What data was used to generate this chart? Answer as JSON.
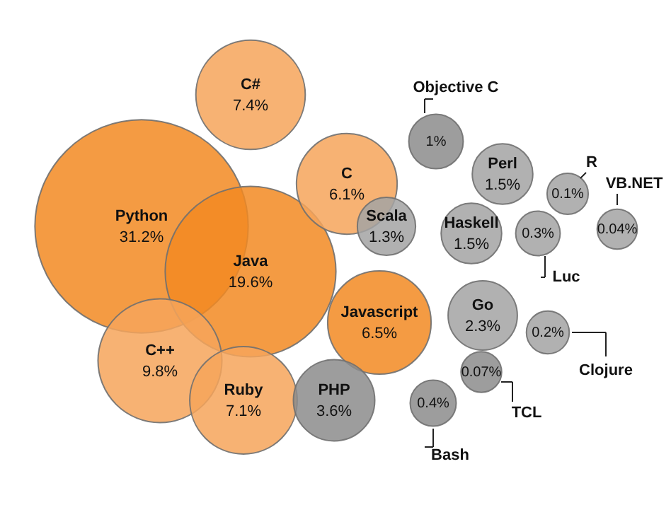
{
  "chart_data": {
    "type": "other",
    "categories": [
      "Python",
      "Java",
      "C++",
      "C#",
      "Ruby",
      "Javascript",
      "C",
      "PHP",
      "Go",
      "Perl",
      "Haskell",
      "Scala",
      "Objective C",
      "Bash",
      "TCL",
      "R",
      "VB.NET",
      "Luc",
      "Clojure"
    ],
    "values": [
      31.2,
      19.6,
      9.8,
      7.4,
      7.1,
      6.5,
      6.1,
      3.6,
      2.3,
      1.5,
      1.5,
      1.3,
      1,
      0.4,
      0.07,
      0.1,
      0.04,
      0.3,
      0.2
    ],
    "value_labels": [
      "31.2%",
      "19.6%",
      "9.8%",
      "7.4%",
      "7.1%",
      "6.5%",
      "6.1%",
      "3.6%",
      "2.3%",
      "1.5%",
      "1.5%",
      "1.3%",
      "1%",
      "0.4%",
      "0.07%",
      "0.1%",
      "0.04%",
      "0.3%",
      "0.2%"
    ],
    "colors": [
      "#f28a22",
      "#f28a22",
      "#f6a55a",
      "#f6a55a",
      "#f6a55a",
      "#f28a22",
      "#f6a55a",
      "#8c8c8c",
      "#a3a3a3",
      "#a3a3a3",
      "#a3a3a3",
      "#a3a3a3",
      "#8c8c8c",
      "#8c8c8c",
      "#8c8c8c",
      "#a3a3a3",
      "#a3a3a3",
      "#a3a3a3",
      "#a3a3a3"
    ]
  }
}
